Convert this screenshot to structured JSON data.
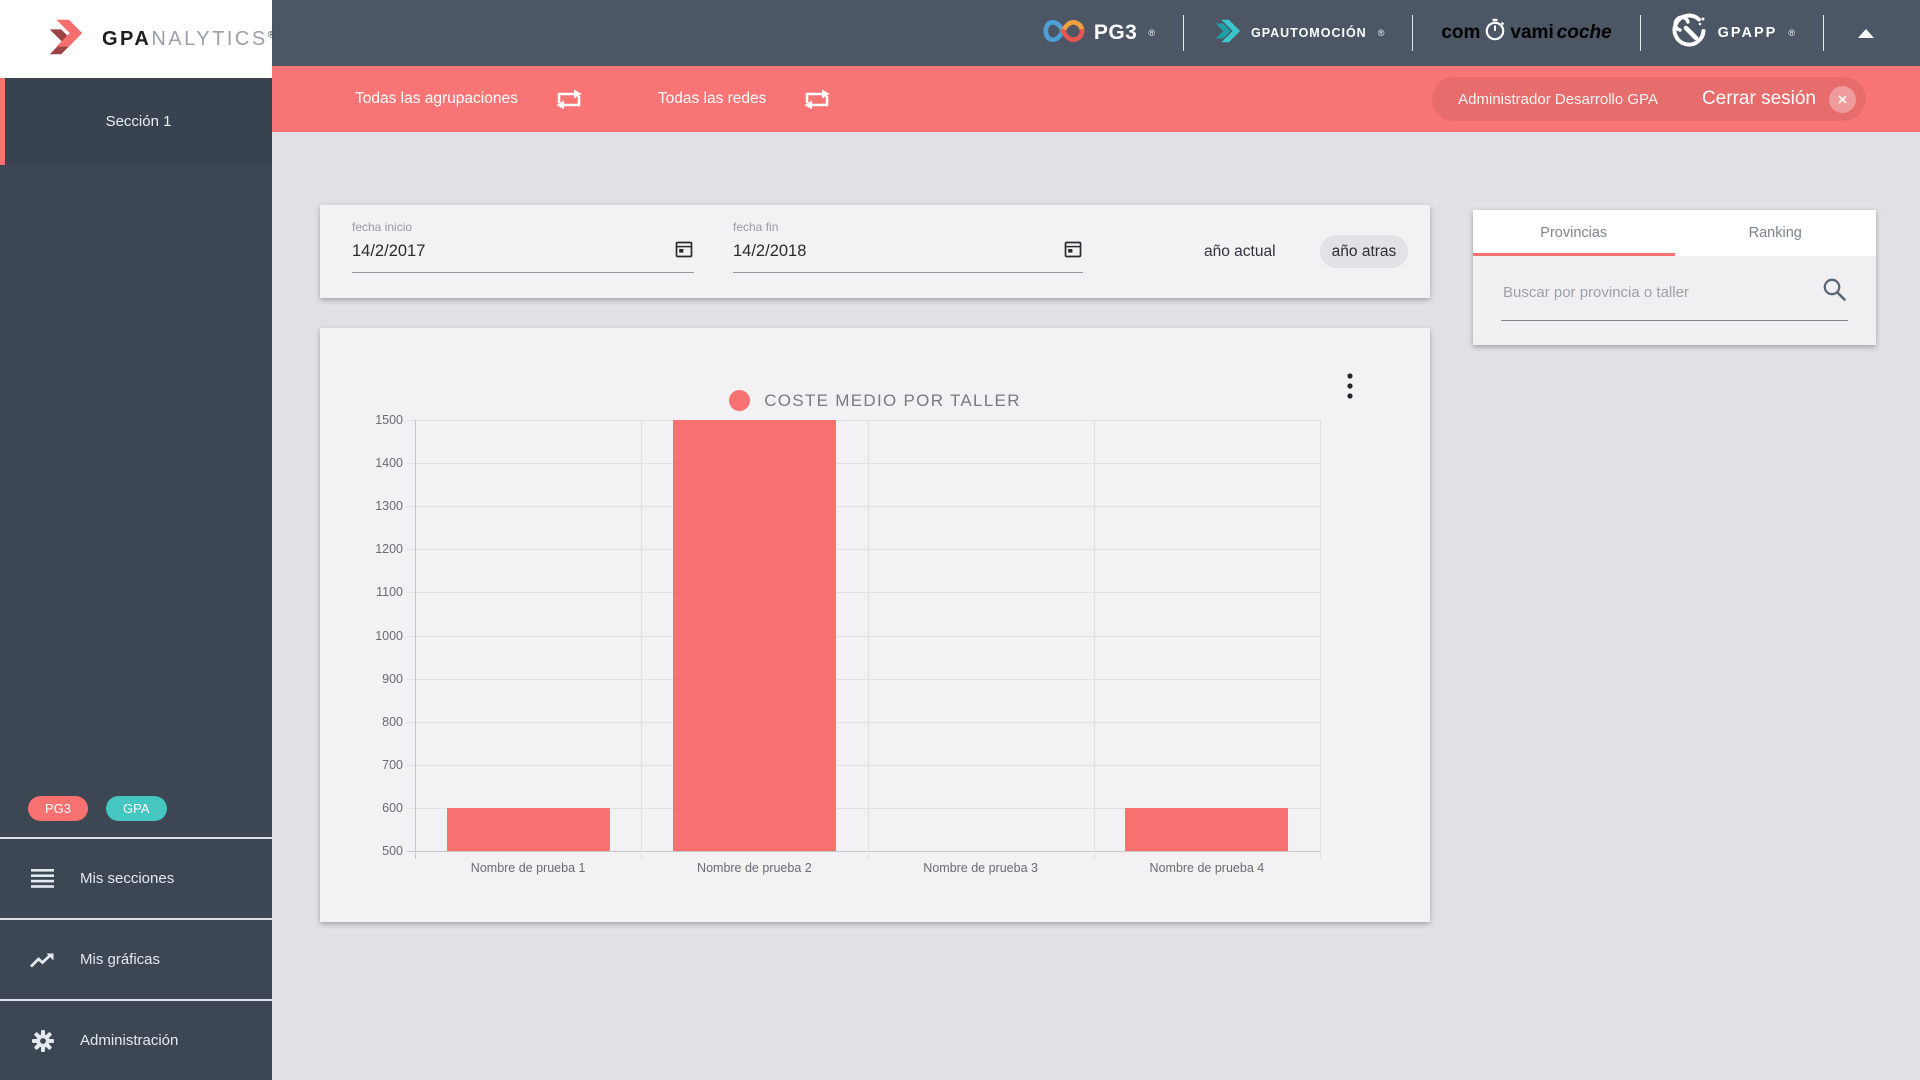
{
  "colors": {
    "accent": "#F87171",
    "teal": "#45C6C0",
    "sidebar_dark": "#3D4754"
  },
  "topbar": {
    "pg3": {
      "text": "PG3",
      "reg": "®"
    },
    "gpautomocion": {
      "text": "GPAUTOMOCIÓN",
      "reg": "®"
    },
    "comvamicoche": {
      "part1": "com",
      "part2": "vami",
      "part3": "coche"
    },
    "gpapp": {
      "text": "GPAPP",
      "reg": "®"
    }
  },
  "sidebar": {
    "logo": {
      "bold": "GPA",
      "rest": "NALYTICS",
      "reg": "®"
    },
    "active_section": "Sección 1",
    "badges": [
      {
        "label": "PG3",
        "color": "#F87171"
      },
      {
        "label": "GPA",
        "color": "#45C6C0"
      }
    ],
    "menu": [
      {
        "label": "Mis secciones",
        "icon": "menu-icon"
      },
      {
        "label": "Mis gráficas",
        "icon": "trend-icon"
      },
      {
        "label": "Administración",
        "icon": "gear-icon"
      }
    ]
  },
  "filterbar": {
    "agrupaciones": "Todas las agrupaciones",
    "redes": "Todas las redes",
    "user": "Administrador Desarrollo GPA",
    "logout": "Cerrar sesión"
  },
  "date_filters": {
    "fecha_inicio": {
      "label": "fecha inicio",
      "value": "14/2/2017"
    },
    "fecha_fin": {
      "label": "fecha fin",
      "value": "14/2/2018"
    },
    "btn_current": "año actual",
    "btn_previous": "año atras"
  },
  "chart_data": {
    "type": "bar",
    "title": "COSTE MEDIO POR TALLER",
    "categories": [
      "Nombre de prueba 1",
      "Nombre de prueba 2",
      "Nombre de prueba 3",
      "Nombre de prueba 4"
    ],
    "values": [
      600,
      1500,
      500,
      600
    ],
    "ylim": [
      500,
      1500
    ],
    "ytick_step": 100,
    "bar_color": "#F87272",
    "grid": true,
    "legend_position": "top-center"
  },
  "right_panel": {
    "tabs": [
      {
        "label": "Provincias",
        "active": true
      },
      {
        "label": "Ranking",
        "active": false
      }
    ],
    "search": {
      "placeholder": "Buscar por provincia o taller"
    }
  }
}
